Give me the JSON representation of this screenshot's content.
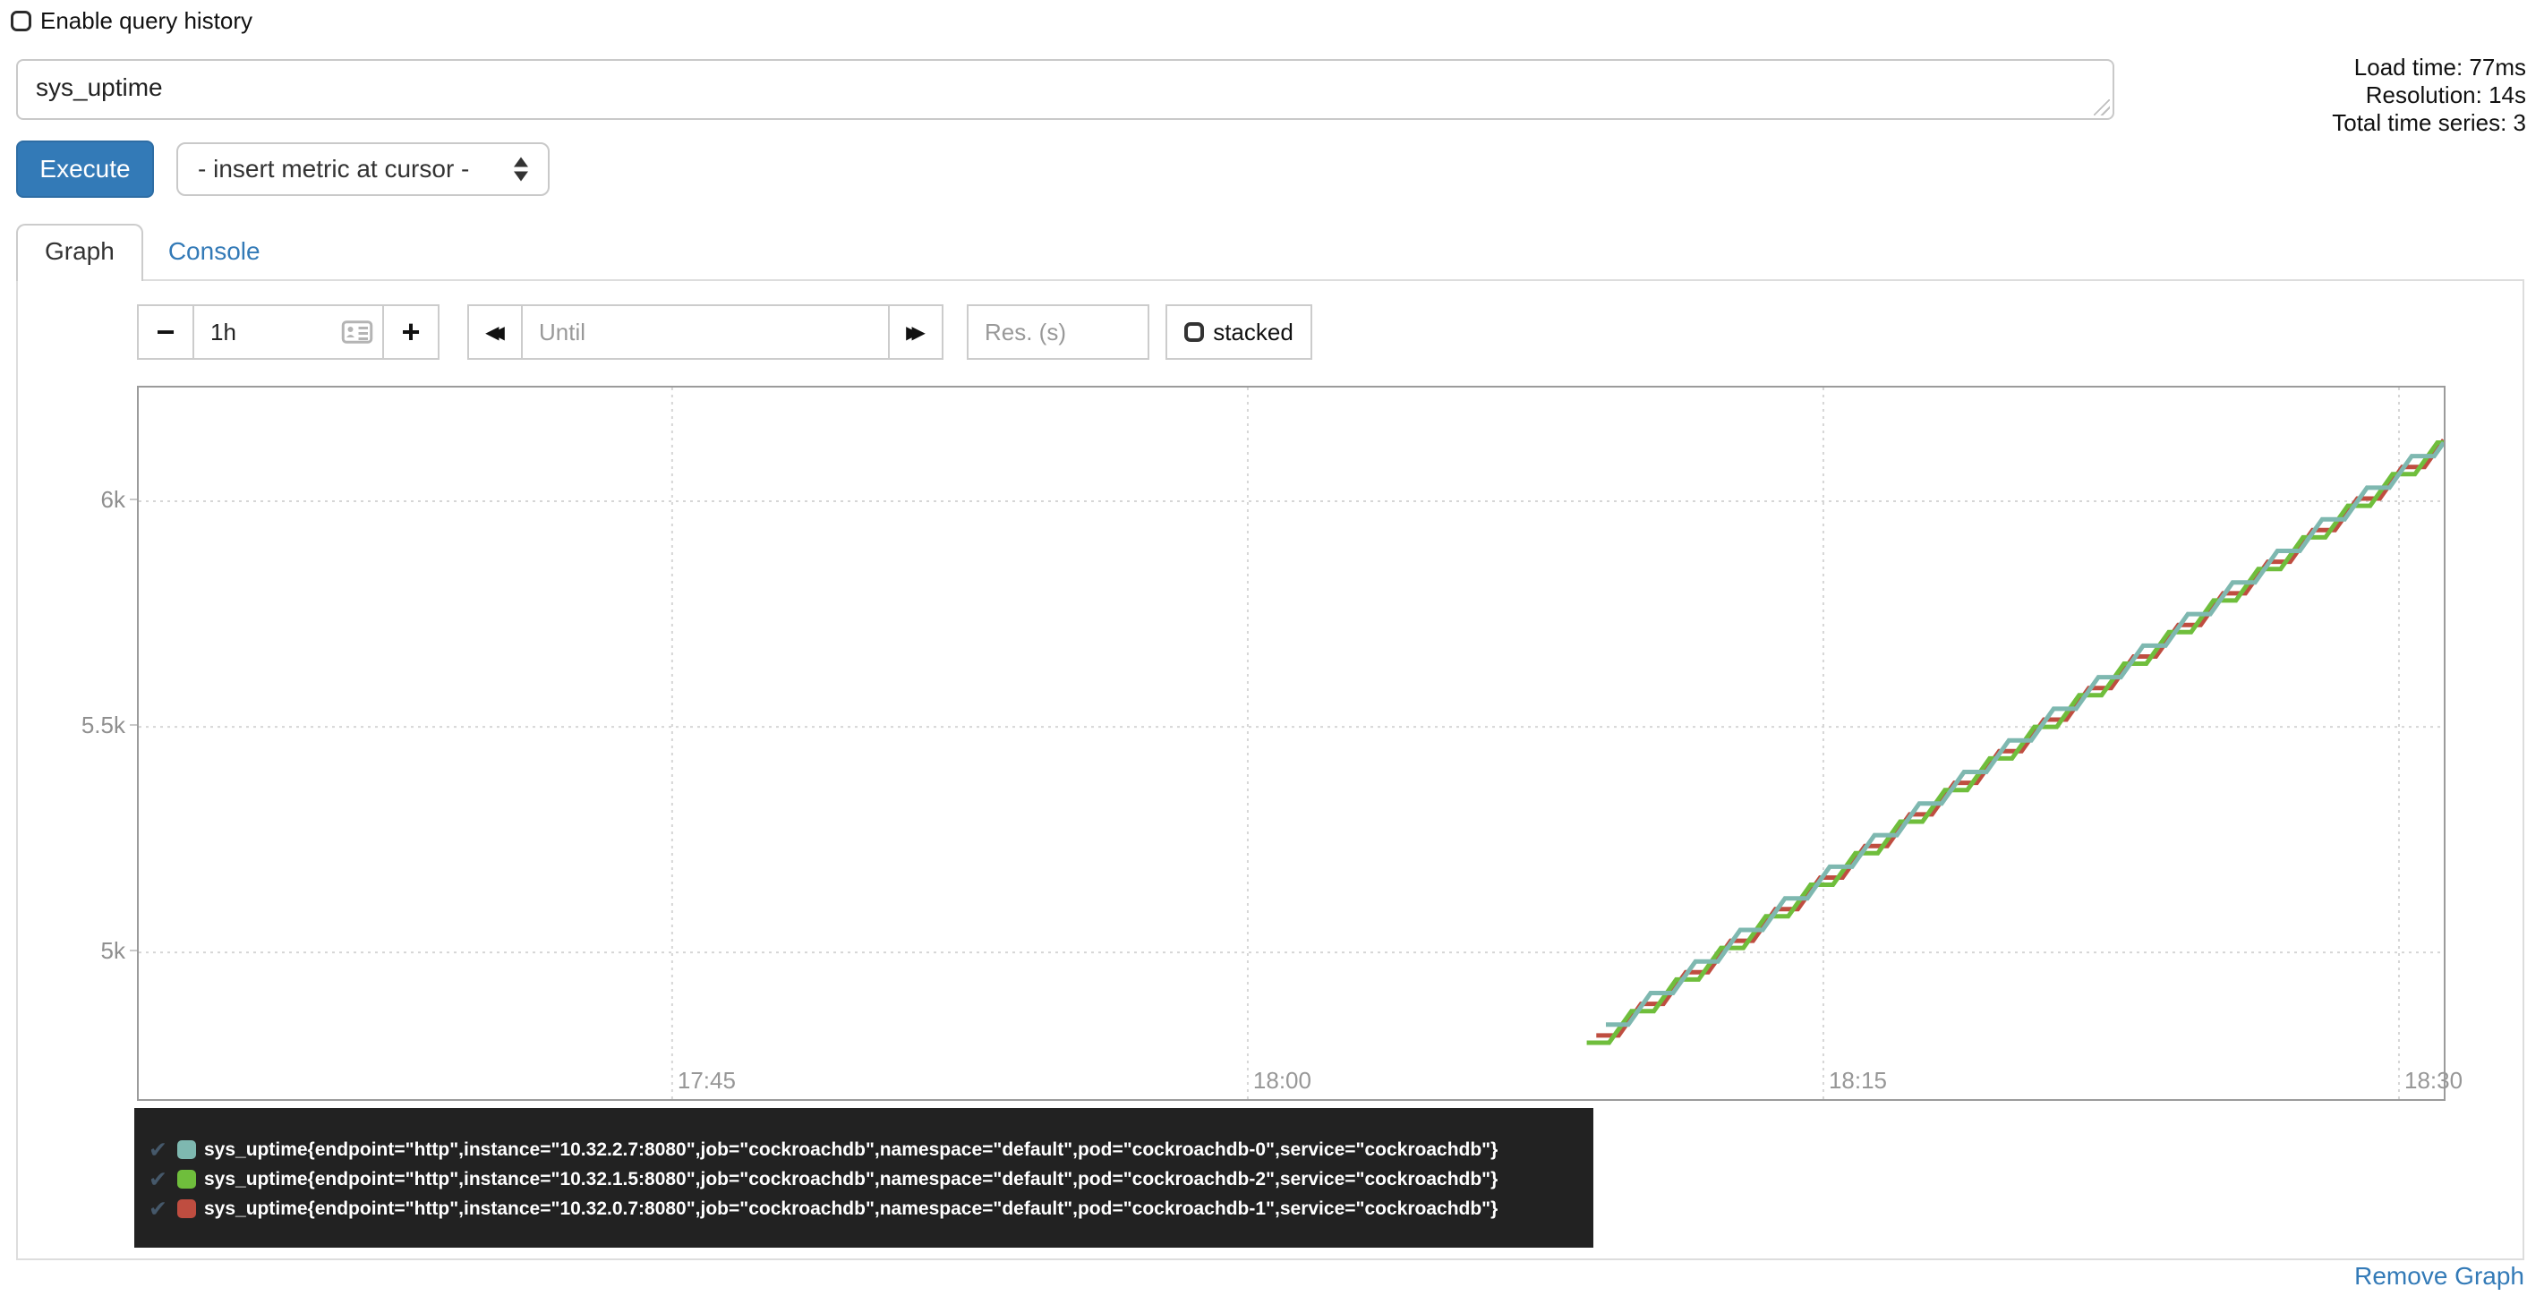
{
  "header": {
    "history_checkbox_label": "Enable query history",
    "query_value": "sys_uptime",
    "stats": {
      "load_time": "Load time: 77ms",
      "resolution": "Resolution: 14s",
      "total_series": "Total time series: 3"
    },
    "execute_label": "Execute",
    "metric_dropdown_value": "- insert metric at cursor -"
  },
  "tabs": [
    {
      "label": "Graph",
      "active": true
    },
    {
      "label": "Console",
      "active": false
    }
  ],
  "controls": {
    "range_decrease": "−",
    "range_value": "1h",
    "range_increase": "+",
    "shift_back": "◀◀",
    "until_placeholder": "Until",
    "shift_forward": "▶▶",
    "res_placeholder": "Res. (s)",
    "stacked_label": "stacked",
    "stacked_checked": false
  },
  "icons": {
    "check": "✔"
  },
  "colors": {
    "accent_blue": "#337ab7",
    "legend_bg": "#222222",
    "plot_border": "#9b9b9b",
    "grid": "#d6d6d6",
    "axis_text": "#979797",
    "series_teal": "#7EB8B0",
    "series_green": "#6FBE3C",
    "series_red": "#BF4D40"
  },
  "footer": {
    "remove_graph_label": "Remove Graph"
  },
  "chart_data": {
    "type": "line",
    "stacked": false,
    "x_axis": {
      "tick_labels": [
        "17:45",
        "18:00",
        "18:15",
        "18:30"
      ],
      "visible_range": [
        "17:31",
        "18:31"
      ]
    },
    "y_axis": {
      "tick_labels": [
        "5k",
        "5.5k",
        "6k"
      ],
      "approx_range": [
        4675,
        6252
      ]
    },
    "series": [
      {
        "name": "sys_uptime{endpoint=\"http\",instance=\"10.32.2.7:8080\",job=\"cockroachdb\",namespace=\"default\",pod=\"cockroachdb-0\",service=\"cockroachdb\"}",
        "color": "#7EB8B0",
        "checked": true,
        "approx_points": [
          [
            "18:09:20",
            4840
          ],
          [
            "18:14:00",
            5120
          ],
          [
            "18:19:00",
            5420
          ],
          [
            "18:24:00",
            5720
          ],
          [
            "18:29:00",
            6020
          ],
          [
            "18:31:10",
            6150
          ]
        ]
      },
      {
        "name": "sys_uptime{endpoint=\"http\",instance=\"10.32.1.5:8080\",job=\"cockroachdb\",namespace=\"default\",pod=\"cockroachdb-2\",service=\"cockroachdb\"}",
        "color": "#6FBE3C",
        "checked": true,
        "approx_points": [
          [
            "18:08:50",
            4800
          ],
          [
            "18:14:00",
            5110
          ],
          [
            "18:19:00",
            5410
          ],
          [
            "18:24:00",
            5710
          ],
          [
            "18:29:00",
            6010
          ],
          [
            "18:31:10",
            6140
          ]
        ]
      },
      {
        "name": "sys_uptime{endpoint=\"http\",instance=\"10.32.0.7:8080\",job=\"cockroachdb\",namespace=\"default\",pod=\"cockroachdb-1\",service=\"cockroachdb\"}",
        "color": "#BF4D40",
        "checked": true,
        "approx_points": [
          [
            "18:09:05",
            4816
          ],
          [
            "18:14:00",
            5111
          ],
          [
            "18:19:00",
            5411
          ],
          [
            "18:24:00",
            5711
          ],
          [
            "18:29:00",
            6011
          ],
          [
            "18:31:10",
            6141
          ]
        ]
      }
    ],
    "render": {
      "x_domain_s": [
        1866,
        5470
      ],
      "y_domain": [
        4675,
        6252
      ],
      "x_grid": [
        {
          "t": 2700,
          "label": "17:45"
        },
        {
          "t": 3600,
          "label": "18:00"
        },
        {
          "t": 4500,
          "label": "18:15"
        },
        {
          "t": 5400,
          "label": "18:30"
        }
      ],
      "y_grid": [
        {
          "v": 5000,
          "label": "5k"
        },
        {
          "v": 5500,
          "label": "5.5k"
        },
        {
          "v": 6000,
          "label": "6k"
        }
      ],
      "series_geom": [
        {
          "t_start": 4160,
          "v_start": 4840,
          "t_end": 5470,
          "hold_s": 35,
          "rise_s": 35,
          "step_gain": 70,
          "z": 3
        },
        {
          "t_start": 4130,
          "v_start": 4800,
          "t_end": 5470,
          "hold_s": 35,
          "rise_s": 35,
          "step_gain": 70,
          "z": 2
        },
        {
          "t_start": 4145,
          "v_start": 4816,
          "t_end": 5470,
          "hold_s": 35,
          "rise_s": 35,
          "step_gain": 70,
          "z": 1
        }
      ]
    }
  }
}
